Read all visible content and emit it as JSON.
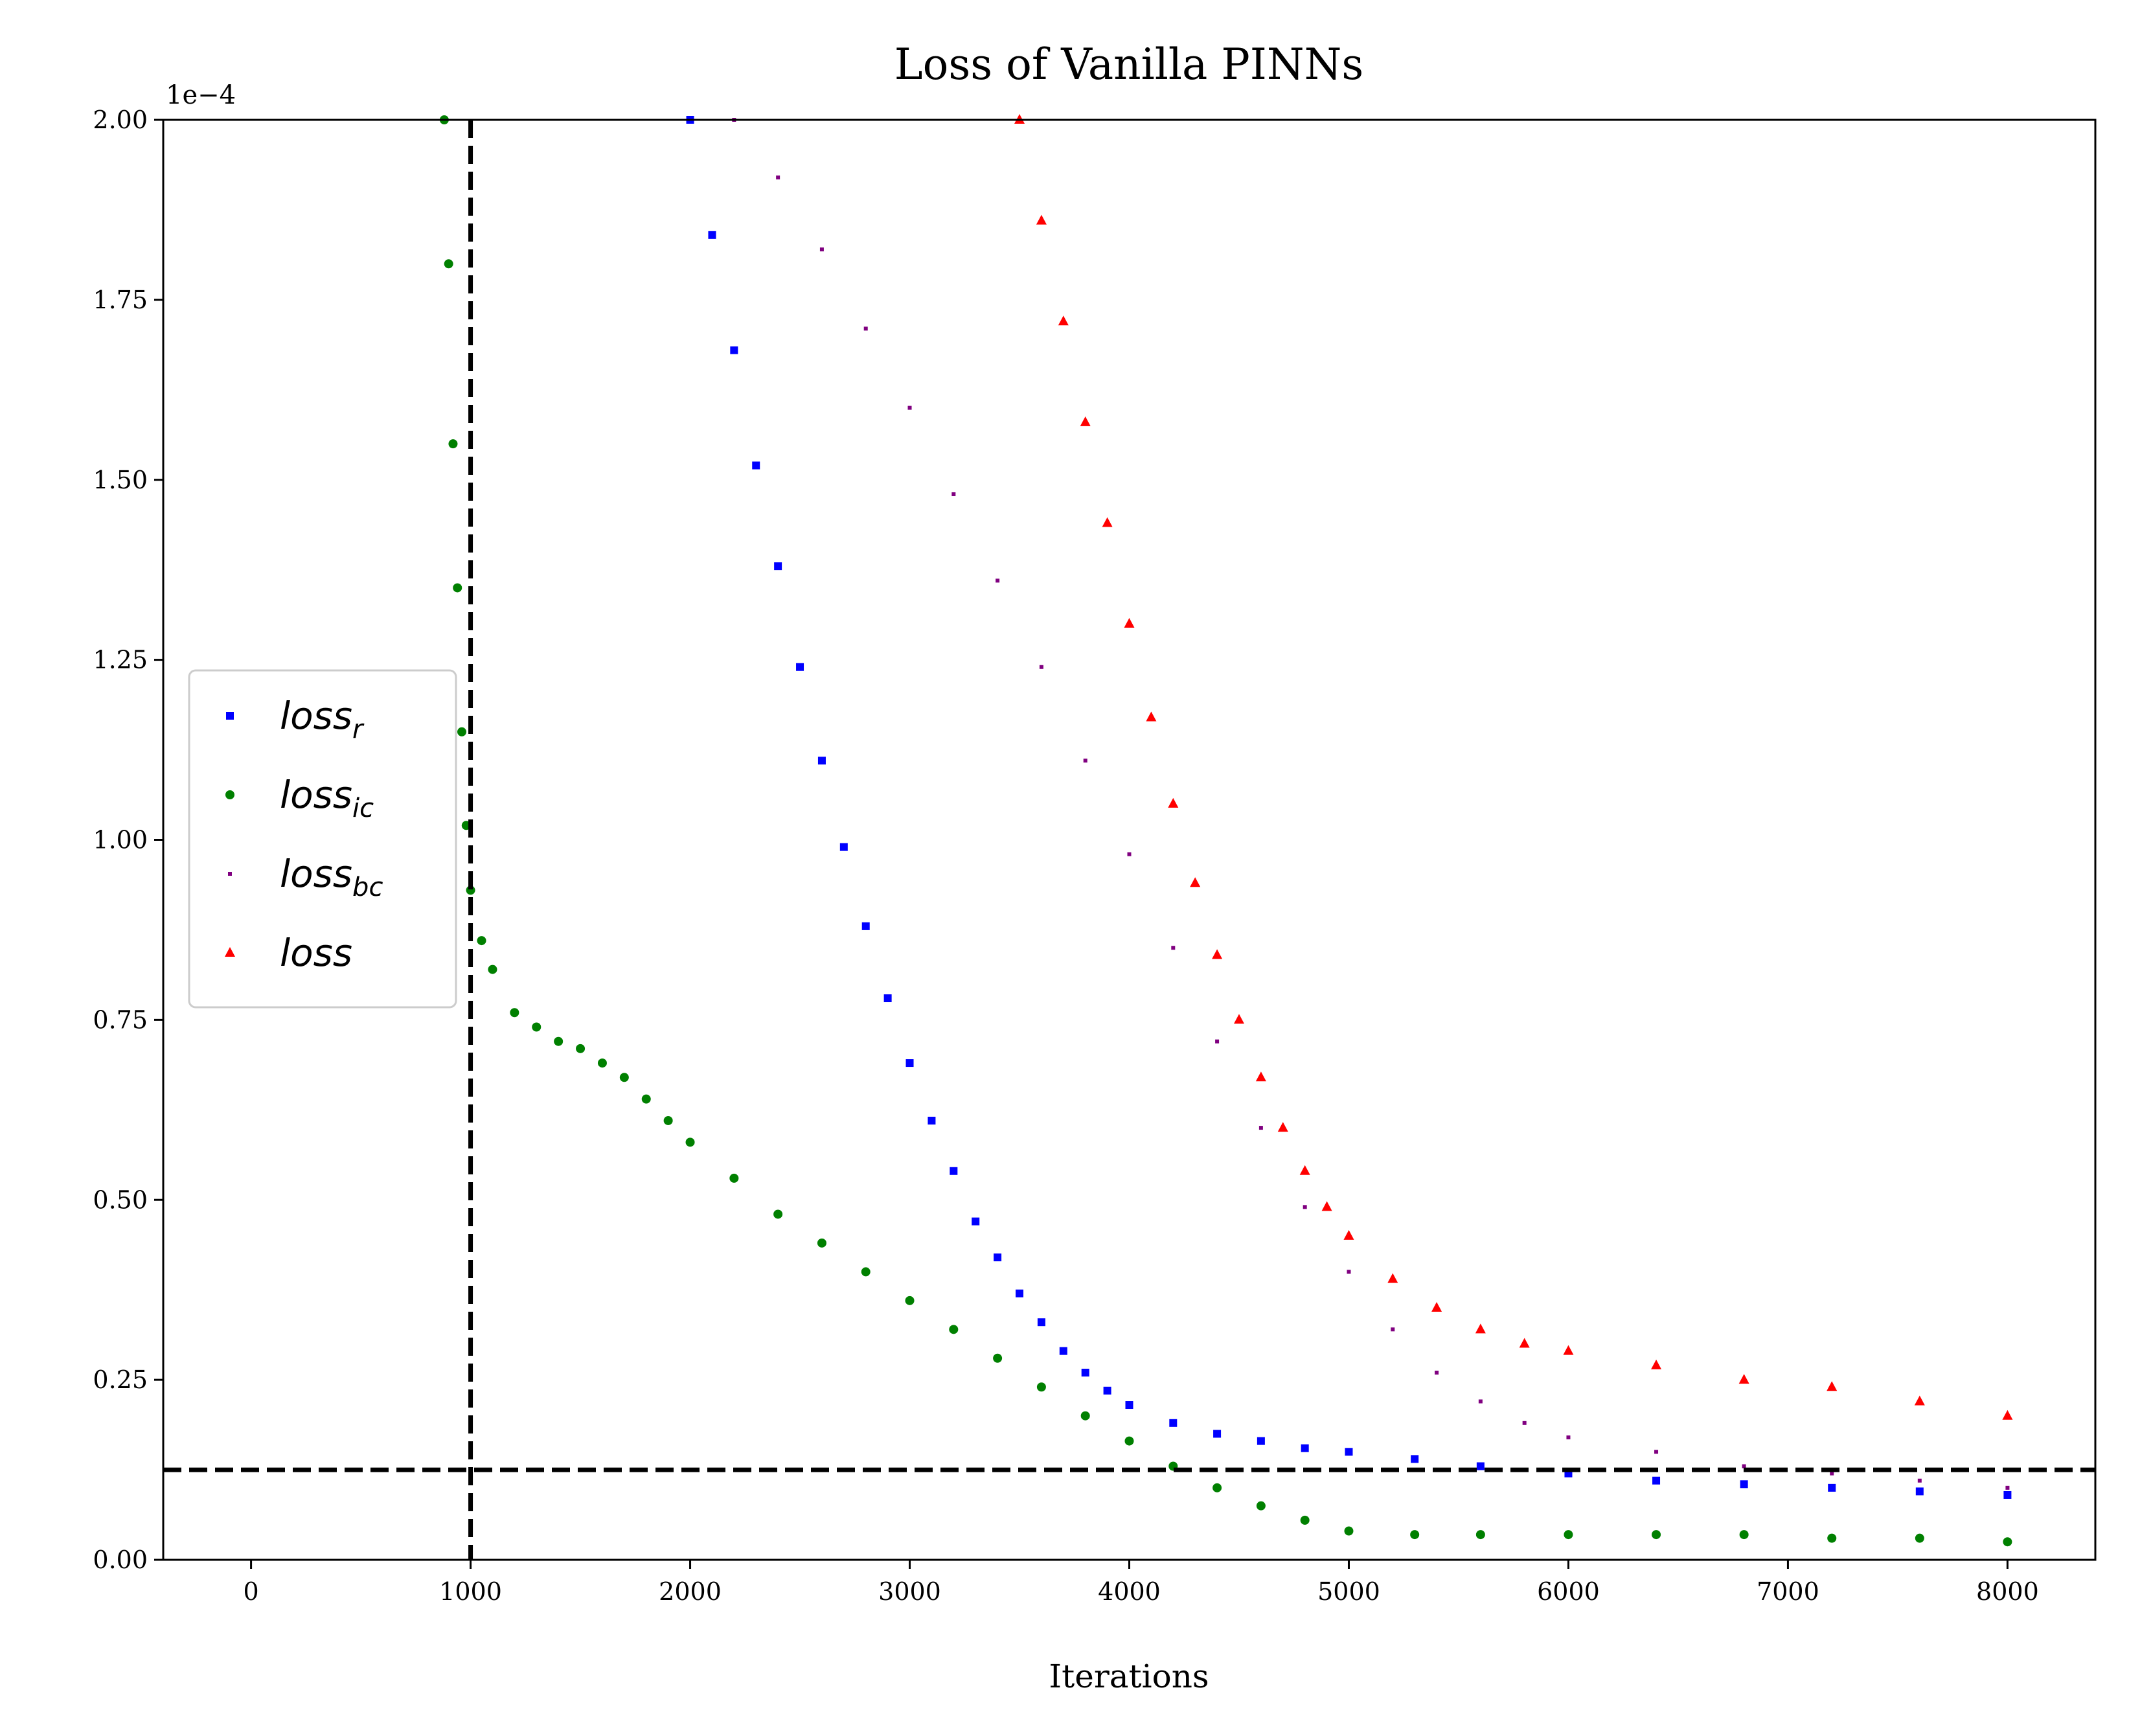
{
  "chart_data": {
    "type": "scatter",
    "title": "Loss of Vanilla PINNs",
    "xlabel": "Iterations",
    "ylabel": "",
    "y_offset_label": "1e−4",
    "xlim": [
      -400,
      8400
    ],
    "ylim": [
      0,
      2.0
    ],
    "xticks": [
      0,
      1000,
      2000,
      3000,
      4000,
      5000,
      6000,
      7000,
      8000
    ],
    "xtick_labels": [
      "0",
      "1000",
      "2000",
      "3000",
      "4000",
      "5000",
      "6000",
      "7000",
      "8000"
    ],
    "yticks": [
      0,
      0.25,
      0.5,
      0.75,
      1.0,
      1.25,
      1.5,
      1.75,
      2.0
    ],
    "ytick_labels": [
      "0.00",
      "0.25",
      "0.50",
      "0.75",
      "1.00",
      "1.25",
      "1.50",
      "1.75",
      "2.00"
    ],
    "grid": false,
    "legend_position": "center-left",
    "reference_lines": [
      {
        "orientation": "vertical",
        "x": 1000,
        "style": "dashed",
        "color": "#000000"
      },
      {
        "orientation": "horizontal",
        "y": 0.125,
        "style": "dashed",
        "color": "#000000"
      }
    ],
    "series": [
      {
        "name": "loss",
        "sub": "r",
        "marker": "square",
        "color": "#0000ff",
        "x": [
          2000,
          2100,
          2200,
          2300,
          2400,
          2500,
          2600,
          2700,
          2800,
          2900,
          3000,
          3100,
          3200,
          3300,
          3400,
          3500,
          3600,
          3700,
          3800,
          3900,
          4000,
          4200,
          4400,
          4600,
          4800,
          5000,
          5300,
          5600,
          6000,
          6400,
          6800,
          7200,
          7600,
          8000
        ],
        "y": [
          2.0,
          1.84,
          1.68,
          1.52,
          1.38,
          1.24,
          1.11,
          0.99,
          0.88,
          0.78,
          0.69,
          0.61,
          0.54,
          0.47,
          0.42,
          0.37,
          0.33,
          0.29,
          0.26,
          0.235,
          0.215,
          0.19,
          0.175,
          0.165,
          0.155,
          0.15,
          0.14,
          0.13,
          0.12,
          0.11,
          0.105,
          0.1,
          0.095,
          0.09
        ]
      },
      {
        "name": "loss",
        "sub": "ic",
        "marker": "circle",
        "color": "#008000",
        "x": [
          880,
          900,
          920,
          940,
          960,
          980,
          1000,
          1050,
          1100,
          1200,
          1300,
          1400,
          1500,
          1600,
          1700,
          1800,
          1900,
          2000,
          2200,
          2400,
          2600,
          2800,
          3000,
          3200,
          3400,
          3600,
          3800,
          4000,
          4200,
          4400,
          4600,
          4800,
          5000,
          5300,
          5600,
          6000,
          6400,
          6800,
          7200,
          7600,
          8000
        ],
        "y": [
          2.0,
          1.8,
          1.55,
          1.35,
          1.15,
          1.02,
          0.93,
          0.86,
          0.82,
          0.76,
          0.74,
          0.72,
          0.71,
          0.69,
          0.67,
          0.64,
          0.61,
          0.58,
          0.53,
          0.48,
          0.44,
          0.4,
          0.36,
          0.32,
          0.28,
          0.24,
          0.2,
          0.165,
          0.13,
          0.1,
          0.075,
          0.055,
          0.04,
          0.035,
          0.035,
          0.035,
          0.035,
          0.035,
          0.03,
          0.03,
          0.025
        ]
      },
      {
        "name": "loss",
        "sub": "bc",
        "marker": "pixel",
        "color": "#800080",
        "x": [
          2200,
          2400,
          2600,
          2800,
          3000,
          3200,
          3400,
          3600,
          3800,
          4000,
          4200,
          4400,
          4600,
          4800,
          5000,
          5200,
          5400,
          5600,
          5800,
          6000,
          6400,
          6800,
          7200,
          7600,
          8000
        ],
        "y": [
          2.0,
          1.92,
          1.82,
          1.71,
          1.6,
          1.48,
          1.36,
          1.24,
          1.11,
          0.98,
          0.85,
          0.72,
          0.6,
          0.49,
          0.4,
          0.32,
          0.26,
          0.22,
          0.19,
          0.17,
          0.15,
          0.13,
          0.12,
          0.11,
          0.1
        ]
      },
      {
        "name": "loss",
        "sub": "",
        "marker": "triangle",
        "color": "#ff0000",
        "x": [
          3500,
          3600,
          3700,
          3800,
          3900,
          4000,
          4100,
          4200,
          4300,
          4400,
          4500,
          4600,
          4700,
          4800,
          4900,
          5000,
          5200,
          5400,
          5600,
          5800,
          6000,
          6400,
          6800,
          7200,
          7600,
          8000
        ],
        "y": [
          2.0,
          1.86,
          1.72,
          1.58,
          1.44,
          1.3,
          1.17,
          1.05,
          0.94,
          0.84,
          0.75,
          0.67,
          0.6,
          0.54,
          0.49,
          0.45,
          0.39,
          0.35,
          0.32,
          0.3,
          0.29,
          0.27,
          0.25,
          0.24,
          0.22,
          0.2
        ]
      }
    ]
  }
}
